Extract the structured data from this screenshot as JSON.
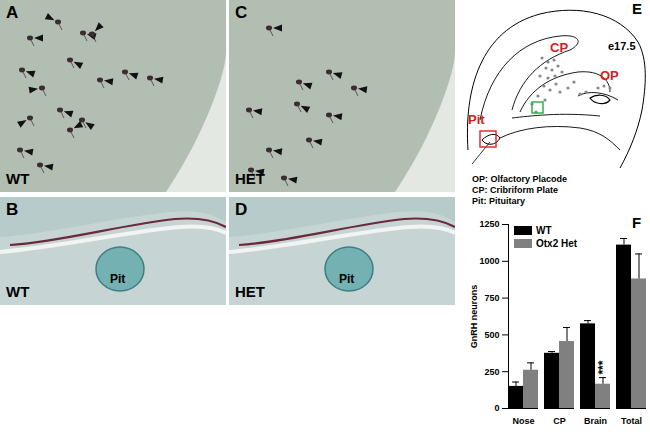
{
  "figure": {
    "panels": [
      {
        "label": "A",
        "caption": "WT"
      },
      {
        "label": "B",
        "caption": "WT",
        "annotation": "Pit"
      },
      {
        "label": "C",
        "caption": "HET"
      },
      {
        "label": "D",
        "caption": "HET",
        "annotation": "Pit"
      },
      {
        "label": "E",
        "title": "e17.5",
        "regions": [
          "OP",
          "CP",
          "Pit"
        ],
        "key": [
          "OP: Olfactory Placode",
          "CP: Cribriform Plate",
          "Pit: Pituitary"
        ]
      },
      {
        "label": "F"
      }
    ]
  },
  "chart_data": {
    "type": "bar",
    "categories": [
      "Nose",
      "CP",
      "Brain",
      "Total"
    ],
    "series": [
      {
        "name": "WT",
        "color": "#000000",
        "values": [
          150,
          375,
          575,
          1110
        ],
        "errors": [
          30,
          12,
          22,
          45
        ]
      },
      {
        "name": "Otx2 Het",
        "color": "#808080",
        "values": [
          260,
          455,
          165,
          880
        ],
        "errors": [
          50,
          95,
          45,
          170
        ]
      }
    ],
    "ylabel": "GnRH neurons",
    "ylim": [
      0,
      1250
    ],
    "yticks": [
      0,
      250,
      500,
      750,
      1000,
      1250
    ],
    "legend": "top-left",
    "annotations": [
      {
        "text": "***",
        "category": "Brain",
        "series": "Otx2 Het"
      }
    ]
  }
}
